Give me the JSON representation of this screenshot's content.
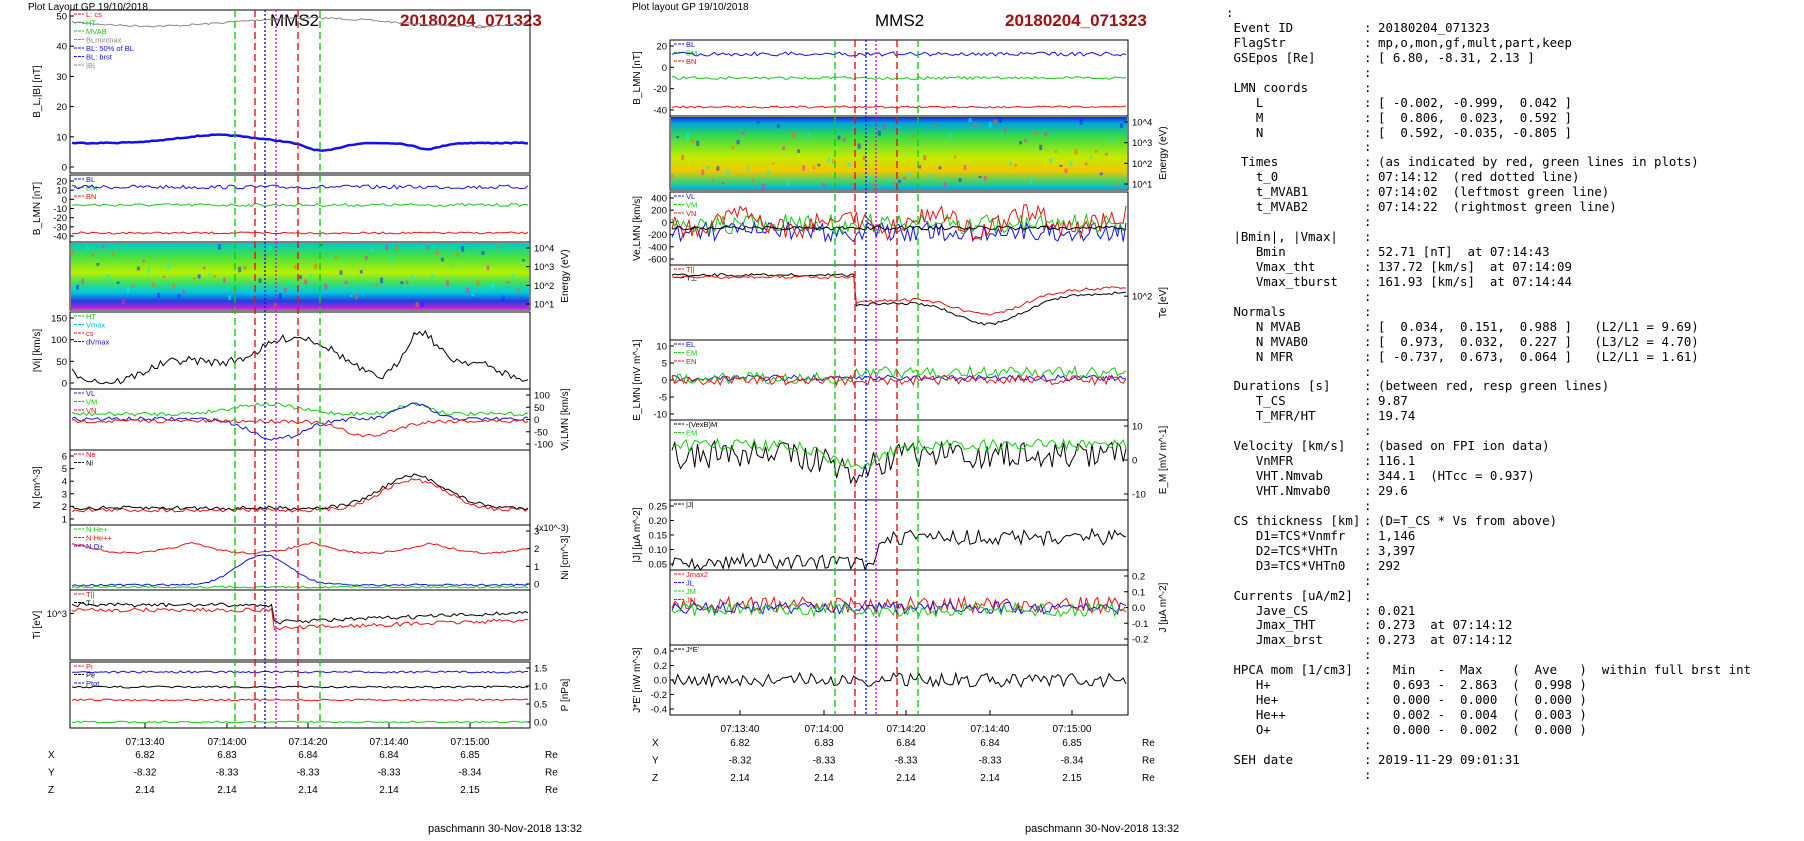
{
  "colors": {
    "red": "#ee1111",
    "green": "#11cc11",
    "blue": "#1111ee",
    "black": "#000000",
    "gray": "#888888",
    "magenta": "#dd00dd",
    "cyan": "#00bbdd",
    "title_red": "#a01010"
  },
  "left": {
    "header": "Plot Layout GP 19/10/2018",
    "sc": "MMS2",
    "event": "20180204_071323",
    "footer": "paschmann 30-Nov-2018 13:32",
    "time_ticks": [
      "07:13:40",
      "07:14:00",
      "07:14:20",
      "07:14:40",
      "07:15:00"
    ],
    "pos": {
      "labels": [
        "X",
        "Y",
        "Z"
      ],
      "rows": [
        [
          "6.82",
          "6.83",
          "6.84",
          "6.84",
          "6.85"
        ],
        [
          "-8.32",
          "-8.33",
          "-8.33",
          "-8.33",
          "-8.34"
        ],
        [
          "2.14",
          "2.14",
          "2.14",
          "2.14",
          "2.15"
        ]
      ],
      "unit": "Re"
    },
    "panels": [
      {
        "ylabel": "B",
        "yunit": "[nT]",
        "ylabel_full": "B_L,|B| [nT]",
        "yticks": [
          "50",
          "40",
          "30",
          "20",
          "10",
          "0"
        ],
        "legend": [
          {
            "t": "L: cs",
            "c": "red"
          },
          {
            "t": "HT",
            "c": "green"
          },
          {
            "t": "MVAB",
            "c": "green"
          },
          {
            "t": "BLminmax",
            "c": "gray"
          },
          {
            "t": "BL: 50% of BL",
            "c": "blue"
          },
          {
            "t": "BL: brst",
            "c": "blue"
          },
          {
            "t": "|B|",
            "c": "gray"
          }
        ]
      },
      {
        "ylabel_full": "B_LMN [nT]",
        "yticks": [
          "20",
          "10",
          "0",
          "-10",
          "-20",
          "-30",
          "-40"
        ],
        "legend": [
          {
            "t": "BL",
            "c": "blue"
          },
          {
            "t": "BM",
            "c": "green"
          },
          {
            "t": "BN",
            "c": "red"
          }
        ]
      },
      {
        "ylabel_full": "Energy (eV)",
        "yticks_r": [
          "10^4",
          "10^3",
          "10^2",
          "10^1"
        ]
      },
      {
        "ylabel_full": "|Vi| [km/s]",
        "yticks": [
          "150",
          "100",
          "50",
          "0"
        ],
        "legend": [
          {
            "t": "HT",
            "c": "green"
          },
          {
            "t": "Vmax",
            "c": "cyan"
          },
          {
            "t": "cs",
            "c": "red"
          },
          {
            "t": "dVmax",
            "c": "blue"
          }
        ]
      },
      {
        "ylabel_full": "Vi,LMN [km/s]",
        "yticks_r": [
          "100",
          "50",
          "0",
          "-50",
          "-100"
        ],
        "legend": [
          {
            "t": "VL",
            "c": "blue"
          },
          {
            "t": "VM",
            "c": "green"
          },
          {
            "t": "VN",
            "c": "red"
          }
        ]
      },
      {
        "ylabel_full": "N [cm^-3]",
        "yticks": [
          "6",
          "5",
          "4",
          "3",
          "2",
          "1"
        ],
        "legend": [
          {
            "t": "Ne",
            "c": "red"
          },
          {
            "t": "Ni",
            "c": "black"
          }
        ]
      },
      {
        "ylabel_full": "Ni [cm^-3]",
        "yticks_r": [
          "3",
          "2",
          "1",
          "0"
        ],
        "exp": "(x10^-3)",
        "legend": [
          {
            "t": "N  He+",
            "c": "green"
          },
          {
            "t": "N  He++",
            "c": "red"
          },
          {
            "t": "N  O+",
            "c": "blue"
          }
        ]
      },
      {
        "ylabel_full": "Ti [eV]",
        "yticks": [
          "10^3"
        ],
        "legend": [
          {
            "t": "T||",
            "c": "red"
          },
          {
            "t": "T⊥",
            "c": "black"
          }
        ]
      },
      {
        "ylabel_full": "P [nPa]",
        "yticks_r": [
          "1.5",
          "1.0",
          "0.5",
          "0.0"
        ],
        "legend": [
          {
            "t": "Pi",
            "c": "red"
          },
          {
            "t": "Pe",
            "c": "black"
          },
          {
            "t": "Ptot",
            "c": "blue"
          }
        ]
      }
    ]
  },
  "right": {
    "header": "Plot layout GP 19/10/2018",
    "sc": "MMS2",
    "event": "20180204_071323",
    "footer": "paschmann 30-Nov-2018 13:32",
    "time_ticks": [
      "07:13:40",
      "07:14:00",
      "07:14:20",
      "07:14:40",
      "07:15:00"
    ],
    "pos": {
      "labels": [
        "X",
        "Y",
        "Z"
      ],
      "rows": [
        [
          "6.82",
          "6.83",
          "6.84",
          "6.84",
          "6.85"
        ],
        [
          "-8.32",
          "-8.33",
          "-8.33",
          "-8.33",
          "-8.34"
        ],
        [
          "2.14",
          "2.14",
          "2.14",
          "2.14",
          "2.15"
        ]
      ],
      "unit": "Re"
    },
    "panels": [
      {
        "ylabel_full": "B_LMN [nT]",
        "yticks": [
          "20",
          "0",
          "-20",
          "-40"
        ],
        "legend": [
          {
            "t": "BL",
            "c": "blue"
          },
          {
            "t": "BM",
            "c": "green"
          },
          {
            "t": "BN",
            "c": "red"
          }
        ]
      },
      {
        "ylabel_full": "Energy (eV)",
        "yticks_r": [
          "10^4",
          "10^3",
          "10^2",
          "10^1"
        ]
      },
      {
        "ylabel_full": "Ve,LMN [km/s]",
        "yticks": [
          "400",
          "200",
          "0",
          "-200",
          "-400",
          "-600"
        ],
        "legend": [
          {
            "t": "VL",
            "c": "blue"
          },
          {
            "t": "VM",
            "c": "green"
          },
          {
            "t": "VN",
            "c": "red"
          }
        ]
      },
      {
        "ylabel_full": "Te [eV]",
        "yticks_r": [
          "10^2"
        ],
        "legend": [
          {
            "t": "T||",
            "c": "red"
          },
          {
            "t": "T⊥",
            "c": "black"
          }
        ]
      },
      {
        "ylabel_full": "E_LMN [mV m^-1]",
        "yticks": [
          "10",
          "5",
          "0",
          "-5",
          "-10"
        ],
        "legend": [
          {
            "t": "EL",
            "c": "blue"
          },
          {
            "t": "EM",
            "c": "green"
          },
          {
            "t": "EN",
            "c": "red"
          }
        ]
      },
      {
        "ylabel_full": "E_M [mV m^-1]",
        "yticks_r": [
          "10",
          "0",
          "-10"
        ],
        "legend": [
          {
            "t": "-(VexB)M",
            "c": "black"
          },
          {
            "t": "EM",
            "c": "green"
          }
        ]
      },
      {
        "ylabel_full": "|J| [µA m^-2]",
        "yticks": [
          "0.25",
          "0.20",
          "0.15",
          "0.10",
          "0.05"
        ],
        "legend": [
          {
            "t": "|J|",
            "c": "black"
          }
        ]
      },
      {
        "ylabel_full": "J [µA m^-2]",
        "yticks_r": [
          "0.2",
          "0.1",
          "0.0",
          "-0.1",
          "-0.2"
        ],
        "legend": [
          {
            "t": "Jmax2",
            "c": "red"
          },
          {
            "t": "JL",
            "c": "blue"
          },
          {
            "t": "JM",
            "c": "green"
          },
          {
            "t": "JN",
            "c": "red"
          }
        ]
      },
      {
        "ylabel_full": "J*E' [nW m^-3]",
        "yticks": [
          "0.4",
          "0.2",
          "0.0",
          "-0.2",
          "-0.4"
        ],
        "legend": [
          {
            "t": "J*E'",
            "c": "black"
          }
        ]
      }
    ]
  },
  "info": {
    "colon": ":",
    "rows": [
      {
        "k": "Event ID",
        "v": "20180204_071323"
      },
      {
        "k": "FlagStr",
        "v": "mp,o,mon,gf,mult,part,keep"
      },
      {
        "k": "GSEpos [Re]",
        "v": "[ 6.80, -8.31, 2.13 ]"
      },
      {
        "k": "",
        "v": ""
      },
      {
        "k": "LMN coords",
        "v": ""
      },
      {
        "k": "   L",
        "v": "[ -0.002, -0.999,  0.042 ]"
      },
      {
        "k": "   M",
        "v": "[  0.806,  0.023,  0.592 ]"
      },
      {
        "k": "   N",
        "v": "[  0.592, -0.035, -0.805 ]"
      },
      {
        "k": "",
        "v": ""
      },
      {
        "k": " Times",
        "v": "(as indicated by red, green lines in plots)"
      },
      {
        "k": "   t_0",
        "v": "07:14:12  (red dotted line)"
      },
      {
        "k": "   t_MVAB1",
        "v": "07:14:02  (leftmost green line)"
      },
      {
        "k": "   t_MVAB2",
        "v": "07:14:22  (rightmost green line)"
      },
      {
        "k": "",
        "v": ""
      },
      {
        "k": "|Bmin|, |Vmax|",
        "v": ""
      },
      {
        "k": "   Bmin",
        "v": "52.71 [nT]  at 07:14:43"
      },
      {
        "k": "   Vmax_tht",
        "v": "137.72 [km/s]  at 07:14:09"
      },
      {
        "k": "   Vmax_tburst",
        "v": "161.93 [km/s]  at 07:14:44"
      },
      {
        "k": "",
        "v": ""
      },
      {
        "k": "Normals",
        "v": ""
      },
      {
        "k": "   N MVAB",
        "v": "[  0.034,  0.151,  0.988 ]   (L2/L1 = 9.69)"
      },
      {
        "k": "   N MVAB0",
        "v": "[  0.973,  0.032,  0.227 ]   (L3/L2 = 4.70)"
      },
      {
        "k": "   N MFR",
        "v": "[ -0.737,  0.673,  0.064 ]   (L2/L1 = 1.61)"
      },
      {
        "k": "",
        "v": ""
      },
      {
        "k": "Durations [s]",
        "v": "(between red, resp green lines)"
      },
      {
        "k": "   T_CS",
        "v": "9.87"
      },
      {
        "k": "   T_MFR/HT",
        "v": "19.74"
      },
      {
        "k": "",
        "v": ""
      },
      {
        "k": "Velocity [km/s]",
        "v": "(based on FPI ion data)"
      },
      {
        "k": "   VnMFR",
        "v": "116.1"
      },
      {
        "k": "   VHT.Nmvab",
        "v": "344.1  (HTcc = 0.937)"
      },
      {
        "k": "   VHT.Nmvab0",
        "v": "29.6"
      },
      {
        "k": "",
        "v": ""
      },
      {
        "k": "CS thickness [km]",
        "v": "(D=T_CS * Vs from above)"
      },
      {
        "k": "   D1=TCS*Vnmfr",
        "v": "1,146"
      },
      {
        "k": "   D2=TCS*VHTn",
        "v": "3,397"
      },
      {
        "k": "   D3=TCS*VHTn0",
        "v": "292"
      },
      {
        "k": "",
        "v": ""
      },
      {
        "k": "Currents [uA/m2]",
        "v": ""
      },
      {
        "k": "   Jave_CS",
        "v": "0.021"
      },
      {
        "k": "   Jmax_THT",
        "v": "0.273  at 07:14:12"
      },
      {
        "k": "   Jmax_brst",
        "v": "0.273  at 07:14:12"
      },
      {
        "k": "",
        "v": ""
      },
      {
        "k": "HPCA mom [1/cm3]",
        "v": "  Min   -  Max    (  Ave   )  within full brst int"
      },
      {
        "k": "   H+",
        "v": "  0.693 -  2.863  (  0.998 )"
      },
      {
        "k": "   He+",
        "v": "  0.000 -  0.000  (  0.000 )"
      },
      {
        "k": "   He++",
        "v": "  0.002 -  0.004  (  0.003 )"
      },
      {
        "k": "   O+",
        "v": "  0.000 -  0.002  (  0.000 )"
      },
      {
        "k": "",
        "v": ""
      },
      {
        "k": "SEH date",
        "v": "2019-11-29 09:01:31"
      },
      {
        "k": "",
        "v": ""
      }
    ]
  },
  "chart_data": [
    {
      "type": "line",
      "title": "MMS2 20180204_071323",
      "x_ticks": [
        "07:13:40",
        "07:14:00",
        "07:14:20",
        "07:14:40",
        "07:15:00"
      ],
      "panel": "B_L,|B| [nT]",
      "ylim": [
        0,
        55
      ],
      "series": [
        {
          "name": "|B|",
          "values": [
            53,
            53,
            52,
            52,
            54,
            55,
            54,
            53,
            53,
            52,
            53,
            53,
            53
          ]
        },
        {
          "name": "BL brst",
          "values": [
            9,
            10,
            10,
            11,
            12,
            13,
            9,
            6,
            9,
            5,
            8,
            7,
            9
          ]
        }
      ],
      "x": [
        0,
        1,
        2,
        3,
        4,
        5,
        6,
        7,
        8,
        9,
        10,
        11,
        12
      ]
    },
    {
      "type": "line",
      "title": "MMS2 20180204_071323",
      "panel": "|J| [µA m^-2]",
      "ylim": [
        0,
        0.27
      ],
      "series": [
        {
          "name": "|J|",
          "values": [
            0.03,
            0.04,
            0.05,
            0.06,
            0.08,
            0.25,
            0.18,
            0.14,
            0.12,
            0.15,
            0.1,
            0.06,
            0.04
          ]
        }
      ],
      "x": [
        0,
        1,
        2,
        3,
        4,
        5,
        6,
        7,
        8,
        9,
        10,
        11,
        12
      ]
    }
  ]
}
